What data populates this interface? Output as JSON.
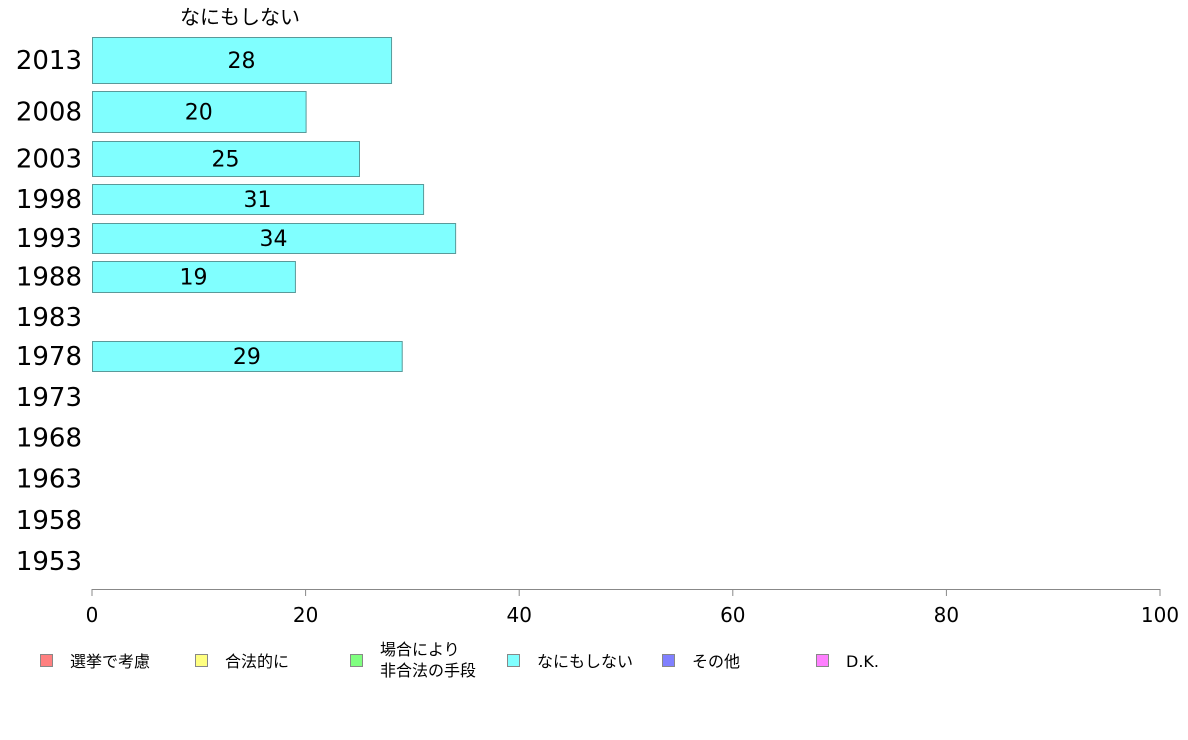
{
  "chart_data": {
    "type": "bar",
    "orientation": "horizontal",
    "title": "なにもしない",
    "categories": [
      "2013",
      "2008",
      "2003",
      "1998",
      "1993",
      "1988",
      "1983",
      "1978",
      "1973",
      "1968",
      "1963",
      "1958",
      "1953"
    ],
    "series": [
      {
        "name": "なにもしない",
        "color": "#80ffff",
        "values": [
          28,
          20,
          25,
          31,
          34,
          19,
          null,
          29,
          null,
          null,
          null,
          null,
          null
        ],
        "labels": [
          "28",
          "20",
          "25",
          "31",
          "34",
          "19",
          "",
          "29",
          "",
          "",
          "",
          "",
          ""
        ]
      }
    ],
    "xlim": [
      0,
      100
    ],
    "xticks": [
      "0",
      "20",
      "40",
      "60",
      "80",
      "100"
    ],
    "grid": false,
    "legend_position": "bottom",
    "legend": [
      {
        "label": "選挙で考慮",
        "color": "#ff8080"
      },
      {
        "label": "合法的に",
        "color": "#ffff80"
      },
      {
        "label": "場合により\n非合法の手段",
        "color": "#80ff80"
      },
      {
        "label": "なにもしない",
        "color": "#80ffff"
      },
      {
        "label": "その他",
        "color": "#8080ff"
      },
      {
        "label": "D.K.",
        "color": "#ff80ff"
      }
    ]
  }
}
